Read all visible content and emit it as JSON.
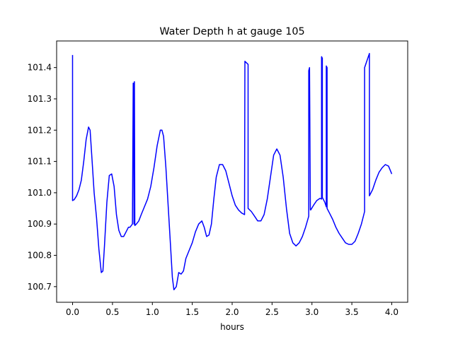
{
  "chart_data": {
    "type": "line",
    "title": "Water Depth h at gauge 105",
    "xlabel": "hours",
    "ylabel": "",
    "xlim": [
      -0.2,
      4.2
    ],
    "ylim": [
      100.65,
      101.485
    ],
    "xticks": [
      0.0,
      0.5,
      1.0,
      1.5,
      2.0,
      2.5,
      3.0,
      3.5,
      4.0
    ],
    "xtick_labels": [
      "0.0",
      "0.5",
      "1.0",
      "1.5",
      "2.0",
      "2.5",
      "3.0",
      "3.5",
      "4.0"
    ],
    "yticks": [
      100.7,
      100.8,
      100.9,
      101.0,
      101.1,
      101.2,
      101.3,
      101.4
    ],
    "ytick_labels": [
      "100.7",
      "100.8",
      "100.9",
      "101.0",
      "101.1",
      "101.2",
      "101.3",
      "101.4"
    ],
    "grid": false,
    "series": [
      {
        "color": "#0000ff",
        "x": [
          0.0,
          0.0,
          0.0,
          0.02,
          0.05,
          0.08,
          0.11,
          0.14,
          0.17,
          0.2,
          0.22,
          0.24,
          0.27,
          0.3,
          0.33,
          0.36,
          0.38,
          0.4,
          0.43,
          0.46,
          0.49,
          0.52,
          0.55,
          0.58,
          0.61,
          0.64,
          0.67,
          0.7,
          0.72,
          0.75,
          0.76,
          0.765,
          0.77,
          0.775,
          0.78,
          0.8,
          0.83,
          0.86,
          0.9,
          0.94,
          0.98,
          1.02,
          1.06,
          1.1,
          1.12,
          1.14,
          1.17,
          1.2,
          1.23,
          1.25,
          1.27,
          1.3,
          1.33,
          1.36,
          1.39,
          1.42,
          1.46,
          1.5,
          1.54,
          1.58,
          1.62,
          1.65,
          1.68,
          1.71,
          1.74,
          1.77,
          1.8,
          1.84,
          1.88,
          1.92,
          1.96,
          2.0,
          2.04,
          2.08,
          2.12,
          2.155,
          2.16,
          2.16,
          2.2,
          2.2,
          2.24,
          2.28,
          2.32,
          2.36,
          2.4,
          2.44,
          2.48,
          2.52,
          2.56,
          2.6,
          2.64,
          2.68,
          2.72,
          2.76,
          2.8,
          2.84,
          2.88,
          2.92,
          2.96,
          2.96,
          2.97,
          2.98,
          2.985,
          2.985,
          3.02,
          3.06,
          3.1,
          3.12,
          3.12,
          3.13,
          3.13,
          3.16,
          3.18,
          3.18,
          3.19,
          3.19,
          3.22,
          3.26,
          3.3,
          3.34,
          3.38,
          3.42,
          3.46,
          3.5,
          3.54,
          3.58,
          3.62,
          3.66,
          3.66,
          3.72,
          3.72,
          3.76,
          3.8,
          3.84,
          3.88,
          3.92,
          3.96,
          4.0
        ],
        "y": [
          101.44,
          101.44,
          100.975,
          100.978,
          100.99,
          101.01,
          101.04,
          101.1,
          101.17,
          101.21,
          101.2,
          101.12,
          101.0,
          100.92,
          100.82,
          100.745,
          100.75,
          100.83,
          100.97,
          101.055,
          101.06,
          101.02,
          100.93,
          100.88,
          100.86,
          100.86,
          100.875,
          100.89,
          100.89,
          100.9,
          101.35,
          101.35,
          100.9,
          101.355,
          100.895,
          100.9,
          100.91,
          100.93,
          100.955,
          100.98,
          101.02,
          101.08,
          101.15,
          101.2,
          101.2,
          101.18,
          101.08,
          100.95,
          100.82,
          100.73,
          100.69,
          100.7,
          100.745,
          100.74,
          100.75,
          100.79,
          100.815,
          100.84,
          100.875,
          100.9,
          100.91,
          100.89,
          100.86,
          100.865,
          100.9,
          100.98,
          101.05,
          101.09,
          101.09,
          101.07,
          101.03,
          100.99,
          100.96,
          100.945,
          100.935,
          100.93,
          101.42,
          101.42,
          101.41,
          100.95,
          100.94,
          100.925,
          100.91,
          100.91,
          100.93,
          100.98,
          101.05,
          101.12,
          101.14,
          101.12,
          101.05,
          100.95,
          100.87,
          100.84,
          100.83,
          100.84,
          100.86,
          100.89,
          100.925,
          101.39,
          101.4,
          100.945,
          100.945,
          100.945,
          100.96,
          100.975,
          100.982,
          100.98,
          101.435,
          101.43,
          100.985,
          100.97,
          100.955,
          101.405,
          101.4,
          100.95,
          100.935,
          100.915,
          100.89,
          100.87,
          100.855,
          100.84,
          100.835,
          100.835,
          100.845,
          100.87,
          100.9,
          100.94,
          101.4,
          101.445,
          100.99,
          101.01,
          101.04,
          101.065,
          101.08,
          101.09,
          101.085,
          101.06
        ]
      }
    ]
  }
}
